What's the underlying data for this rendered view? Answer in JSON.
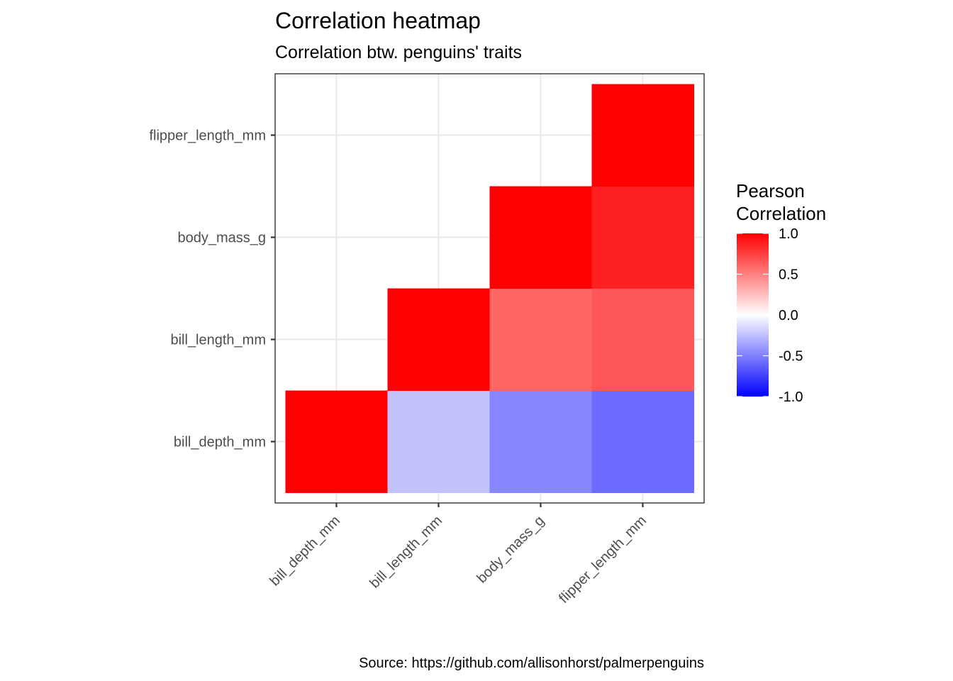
{
  "chart_data": {
    "type": "heatmap",
    "title": "Correlation heatmap",
    "subtitle": "Correlation btw. penguins' traits",
    "caption": "Source: https://github.com/allisonhorst/palmerpenguins",
    "x_categories": [
      "bill_depth_mm",
      "bill_length_mm",
      "body_mass_g",
      "flipper_length_mm"
    ],
    "y_categories": [
      "bill_depth_mm",
      "bill_length_mm",
      "body_mass_g",
      "flipper_length_mm"
    ],
    "cells": [
      {
        "x": "bill_depth_mm",
        "y": "bill_depth_mm",
        "value": 1.0
      },
      {
        "x": "bill_length_mm",
        "y": "bill_depth_mm",
        "value": -0.24
      },
      {
        "x": "bill_length_mm",
        "y": "bill_length_mm",
        "value": 1.0
      },
      {
        "x": "body_mass_g",
        "y": "bill_depth_mm",
        "value": -0.47
      },
      {
        "x": "body_mass_g",
        "y": "bill_length_mm",
        "value": 0.6
      },
      {
        "x": "body_mass_g",
        "y": "body_mass_g",
        "value": 1.0
      },
      {
        "x": "flipper_length_mm",
        "y": "bill_depth_mm",
        "value": -0.58
      },
      {
        "x": "flipper_length_mm",
        "y": "bill_length_mm",
        "value": 0.66
      },
      {
        "x": "flipper_length_mm",
        "y": "body_mass_g",
        "value": 0.87
      },
      {
        "x": "flipper_length_mm",
        "y": "flipper_length_mm",
        "value": 1.0
      }
    ],
    "legend": {
      "title_lines": [
        "Pearson",
        "Correlation"
      ],
      "range": [
        -1.0,
        1.0
      ],
      "ticks": [
        1.0,
        0.5,
        0.0,
        -0.5,
        -1.0
      ],
      "tick_labels": [
        "1.0",
        "0.5",
        "0.0",
        "-0.5",
        "-1.0"
      ],
      "low_color": "#0000ff",
      "mid_color": "#ffffff",
      "high_color": "#ff0000",
      "placement": "right"
    },
    "grid": true
  }
}
